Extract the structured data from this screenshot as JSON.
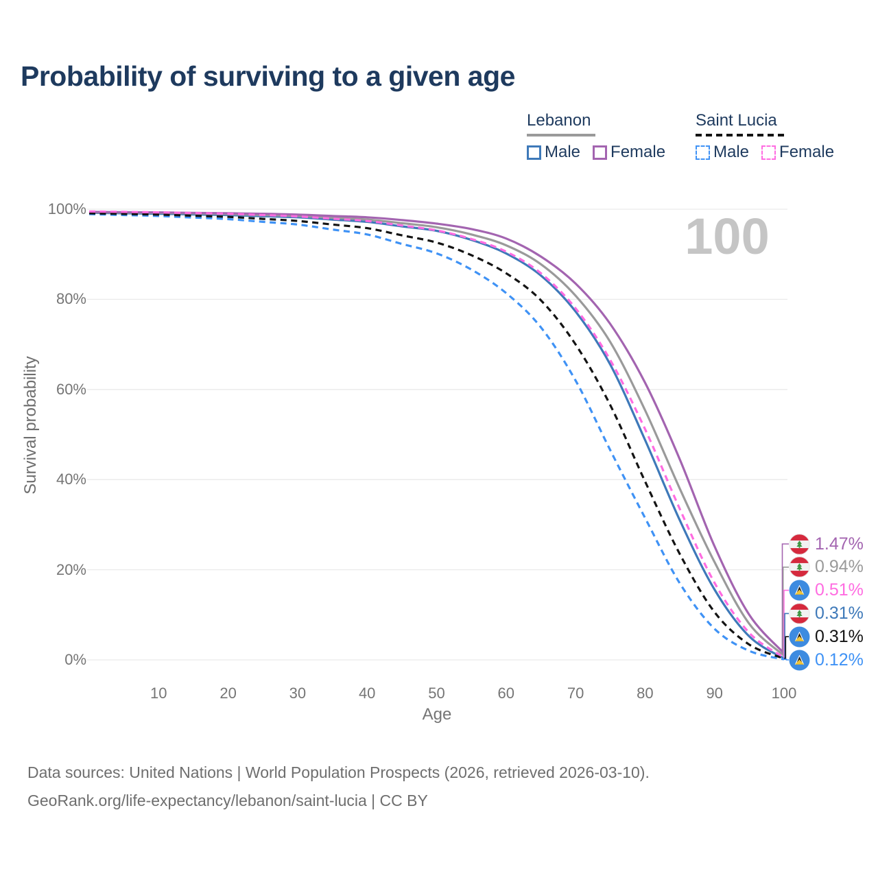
{
  "title": "Probability of surviving to a given age",
  "legend": {
    "groups": [
      {
        "name": "Lebanon",
        "line_style": "solid",
        "underline_color": "#9a9a9a",
        "items": [
          {
            "label": "Male",
            "color": "#3e79b9"
          },
          {
            "label": "Female",
            "color": "#a364b0"
          }
        ]
      },
      {
        "name": "Saint Lucia",
        "line_style": "dashed",
        "underline_color": "#141414",
        "items": [
          {
            "label": "Male",
            "color": "#3f92f5"
          },
          {
            "label": "Female",
            "color": "#ff6ce1"
          }
        ]
      }
    ]
  },
  "chart_data": {
    "type": "line",
    "title": "Probability of surviving to a given age",
    "xlabel": "Age",
    "ylabel": "Survival probability",
    "xlim": [
      0,
      100
    ],
    "ylim": [
      0,
      100
    ],
    "grid": "horizontal",
    "legend_position": "top-right",
    "watermark": "100",
    "x_ticks": [
      10,
      20,
      30,
      40,
      50,
      60,
      70,
      80,
      90,
      100
    ],
    "y_ticks": [
      {
        "value": 0,
        "label": "0%"
      },
      {
        "value": 20,
        "label": "20%"
      },
      {
        "value": 40,
        "label": "40%"
      },
      {
        "value": 60,
        "label": "60%"
      },
      {
        "value": 80,
        "label": "80%"
      },
      {
        "value": 100,
        "label": "100%"
      }
    ],
    "ages": [
      0,
      5,
      10,
      15,
      20,
      25,
      30,
      35,
      40,
      45,
      50,
      55,
      60,
      65,
      70,
      75,
      80,
      85,
      90,
      95,
      100
    ],
    "series": [
      {
        "id": "lebanon-female",
        "country": "Lebanon",
        "sex": "Female",
        "flag": "lebanon",
        "color": "#a364b0",
        "dash": "solid",
        "end_label": "1.47%",
        "values": [
          99.4,
          99.35,
          99.3,
          99.2,
          99.1,
          99.0,
          98.8,
          98.5,
          98.2,
          97.6,
          96.8,
          95.6,
          93.5,
          89.5,
          83.5,
          74.5,
          61.5,
          44.5,
          25.2,
          10.0,
          1.47
        ]
      },
      {
        "id": "lebanon-both-sexes",
        "country": "Lebanon",
        "sex": "Both sexes",
        "flag": "lebanon",
        "color": "#9a9a9a",
        "dash": "solid",
        "end_label": "0.94%",
        "values": [
          99.3,
          99.25,
          99.2,
          99.05,
          98.9,
          98.7,
          98.5,
          98.1,
          97.7,
          96.9,
          96.0,
          94.4,
          92.0,
          87.8,
          80.8,
          70.5,
          55.4,
          38.0,
          21.7,
          8.0,
          0.94
        ]
      },
      {
        "id": "saint-lucia-female",
        "country": "Saint Lucia",
        "sex": "Female",
        "flag": "saint-lucia",
        "color": "#ff6ce1",
        "dash": "dashed",
        "end_label": "0.51%",
        "values": [
          99.5,
          99.4,
          99.3,
          99.15,
          99.0,
          98.7,
          98.4,
          97.9,
          97.4,
          96.4,
          95.3,
          93.4,
          90.6,
          85.8,
          78.0,
          66.5,
          51.2,
          33.5,
          17.1,
          6.0,
          0.51
        ]
      },
      {
        "id": "lebanon-male",
        "country": "Lebanon",
        "sex": "Male",
        "flag": "lebanon",
        "color": "#3e79b9",
        "dash": "solid",
        "end_label": "0.31%",
        "values": [
          99.2,
          99.1,
          99.0,
          98.85,
          98.7,
          98.45,
          98.2,
          97.7,
          97.2,
          96.2,
          95.2,
          93.2,
          90.2,
          85.3,
          77.3,
          65.5,
          48.8,
          31.0,
          15.6,
          5.2,
          0.31
        ]
      },
      {
        "id": "saint-lucia-both-sexes",
        "country": "Saint Lucia",
        "sex": "Both sexes",
        "flag": "saint-lucia",
        "color": "#141414",
        "dash": "dashed",
        "end_label": "0.31%",
        "values": [
          99.1,
          98.95,
          98.8,
          98.55,
          98.3,
          97.85,
          97.4,
          96.6,
          95.8,
          94.2,
          92.6,
          89.8,
          85.8,
          79.8,
          70.0,
          56.5,
          39.6,
          23.5,
          10.6,
          3.4,
          0.31
        ]
      },
      {
        "id": "saint-lucia-male",
        "country": "Saint Lucia",
        "sex": "Male",
        "flag": "saint-lucia",
        "color": "#3f92f5",
        "dash": "dashed",
        "end_label": "0.12%",
        "values": [
          98.9,
          98.7,
          98.5,
          98.15,
          97.8,
          97.2,
          96.6,
          95.5,
          94.4,
          92.3,
          90.2,
          86.6,
          81.4,
          73.8,
          62.0,
          46.5,
          31.5,
          17.0,
          6.9,
          2.0,
          0.12
        ]
      }
    ]
  },
  "footer": {
    "line1": "Data sources: United Nations | World Population Prospects (2026, retrieved 2026-03-10).",
    "line2": "GeoRank.org/life-expectancy/lebanon/saint-lucia | CC BY"
  }
}
